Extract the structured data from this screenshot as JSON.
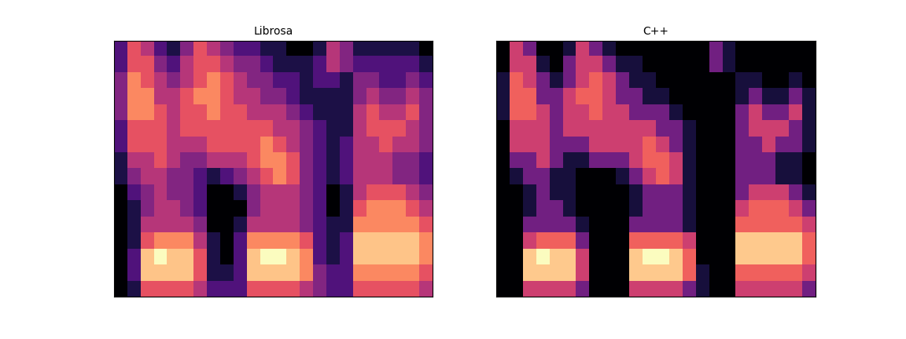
{
  "chart_data": [
    {
      "type": "heatmap",
      "title": "Librosa",
      "tick_labels": false,
      "cells": [
        [
          3,
          6,
          5,
          3,
          2,
          4,
          6,
          5,
          4,
          3,
          3,
          2,
          2,
          1,
          1,
          2,
          5,
          4,
          2,
          2,
          2,
          2,
          2,
          1
        ],
        [
          3,
          6,
          6,
          4,
          3,
          5,
          6,
          6,
          5,
          4,
          4,
          3,
          2,
          2,
          2,
          3,
          5,
          4,
          3,
          3,
          3,
          3,
          3,
          2
        ],
        [
          4,
          7,
          6,
          5,
          4,
          5,
          6,
          7,
          6,
          5,
          4,
          4,
          3,
          3,
          2,
          3,
          3,
          2,
          4,
          4,
          3,
          3,
          4,
          3
        ],
        [
          4,
          7,
          7,
          5,
          5,
          6,
          7,
          7,
          6,
          5,
          5,
          4,
          4,
          3,
          2,
          2,
          2,
          2,
          4,
          5,
          4,
          4,
          5,
          4
        ],
        [
          4,
          7,
          7,
          6,
          5,
          6,
          6,
          7,
          6,
          6,
          5,
          5,
          5,
          4,
          3,
          2,
          2,
          2,
          5,
          6,
          5,
          5,
          6,
          4
        ],
        [
          3,
          6,
          6,
          6,
          5,
          6,
          6,
          6,
          6,
          6,
          6,
          6,
          5,
          5,
          4,
          3,
          2,
          2,
          5,
          6,
          6,
          6,
          5,
          4
        ],
        [
          3,
          6,
          6,
          6,
          5,
          5,
          5,
          6,
          6,
          6,
          6,
          7,
          6,
          5,
          4,
          3,
          2,
          3,
          5,
          5,
          6,
          5,
          5,
          4
        ],
        [
          2,
          5,
          5,
          6,
          5,
          4,
          4,
          5,
          5,
          5,
          6,
          7,
          7,
          6,
          4,
          3,
          2,
          3,
          5,
          5,
          5,
          4,
          4,
          3
        ],
        [
          2,
          4,
          5,
          5,
          4,
          4,
          3,
          2,
          3,
          4,
          5,
          6,
          7,
          6,
          4,
          3,
          2,
          3,
          5,
          5,
          5,
          4,
          4,
          3
        ],
        [
          1,
          3,
          4,
          5,
          4,
          4,
          3,
          1,
          1,
          2,
          4,
          5,
          5,
          5,
          4,
          3,
          1,
          2,
          5,
          6,
          6,
          6,
          5,
          4
        ],
        [
          1,
          2,
          4,
          5,
          5,
          4,
          3,
          1,
          1,
          1,
          4,
          5,
          5,
          5,
          4,
          3,
          1,
          2,
          6,
          7,
          7,
          7,
          6,
          5
        ],
        [
          1,
          2,
          5,
          5,
          5,
          5,
          4,
          1,
          1,
          2,
          5,
          5,
          5,
          5,
          4,
          3,
          2,
          2,
          7,
          7,
          7,
          7,
          7,
          6
        ],
        [
          1,
          2,
          6,
          7,
          7,
          7,
          5,
          2,
          1,
          3,
          7,
          7,
          7,
          7,
          6,
          3,
          2,
          3,
          8,
          8,
          8,
          8,
          8,
          7
        ],
        [
          1,
          3,
          8,
          9,
          8,
          8,
          6,
          2,
          1,
          3,
          8,
          9,
          9,
          8,
          7,
          3,
          2,
          3,
          8,
          8,
          8,
          8,
          8,
          7
        ],
        [
          1,
          3,
          8,
          8,
          8,
          8,
          6,
          2,
          2,
          3,
          8,
          8,
          8,
          8,
          7,
          4,
          3,
          3,
          7,
          7,
          7,
          7,
          7,
          6
        ],
        [
          1,
          2,
          6,
          6,
          6,
          6,
          5,
          3,
          3,
          3,
          6,
          6,
          6,
          6,
          5,
          4,
          3,
          3,
          6,
          6,
          6,
          6,
          6,
          5
        ]
      ]
    },
    {
      "type": "heatmap",
      "title": "C++",
      "tick_labels": false,
      "cells": [
        [
          0,
          5,
          3,
          0,
          0,
          1,
          5,
          3,
          1,
          0,
          0,
          0,
          0,
          0,
          0,
          0,
          3,
          1,
          0,
          0,
          0,
          0,
          0,
          0
        ],
        [
          0,
          5,
          5,
          1,
          0,
          3,
          5,
          5,
          3,
          1,
          1,
          0,
          0,
          0,
          0,
          0,
          3,
          1,
          0,
          0,
          0,
          0,
          0,
          0
        ],
        [
          1,
          6,
          5,
          3,
          1,
          3,
          5,
          6,
          5,
          3,
          1,
          1,
          0,
          0,
          0,
          0,
          0,
          0,
          1,
          1,
          0,
          0,
          1,
          0
        ],
        [
          1,
          6,
          6,
          3,
          3,
          5,
          6,
          6,
          5,
          3,
          3,
          1,
          1,
          0,
          0,
          0,
          0,
          0,
          1,
          3,
          1,
          1,
          3,
          1
        ],
        [
          1,
          6,
          6,
          5,
          3,
          5,
          5,
          6,
          5,
          5,
          3,
          3,
          3,
          1,
          0,
          0,
          0,
          0,
          3,
          5,
          3,
          3,
          5,
          1
        ],
        [
          0,
          5,
          5,
          5,
          3,
          5,
          5,
          5,
          5,
          5,
          5,
          5,
          3,
          3,
          1,
          0,
          0,
          0,
          3,
          5,
          5,
          5,
          3,
          1
        ],
        [
          0,
          5,
          5,
          5,
          3,
          3,
          3,
          5,
          5,
          5,
          5,
          6,
          5,
          3,
          1,
          0,
          0,
          0,
          3,
          3,
          5,
          3,
          3,
          1
        ],
        [
          0,
          3,
          3,
          5,
          3,
          1,
          1,
          3,
          3,
          3,
          5,
          6,
          6,
          5,
          1,
          0,
          0,
          0,
          3,
          3,
          3,
          1,
          1,
          0
        ],
        [
          0,
          1,
          3,
          3,
          1,
          1,
          0,
          0,
          0,
          1,
          3,
          5,
          6,
          5,
          1,
          0,
          0,
          0,
          3,
          3,
          3,
          1,
          1,
          0
        ],
        [
          0,
          0,
          1,
          3,
          1,
          1,
          0,
          0,
          0,
          0,
          1,
          3,
          3,
          3,
          1,
          0,
          0,
          0,
          3,
          5,
          5,
          5,
          3,
          1
        ],
        [
          0,
          0,
          1,
          3,
          3,
          1,
          0,
          0,
          0,
          0,
          1,
          3,
          3,
          3,
          1,
          0,
          0,
          0,
          5,
          6,
          6,
          6,
          5,
          3
        ],
        [
          0,
          0,
          3,
          3,
          3,
          3,
          1,
          0,
          0,
          0,
          3,
          3,
          3,
          3,
          1,
          0,
          0,
          0,
          6,
          6,
          6,
          6,
          6,
          5
        ],
        [
          0,
          0,
          5,
          6,
          6,
          6,
          3,
          0,
          0,
          0,
          6,
          6,
          6,
          6,
          5,
          0,
          0,
          0,
          8,
          8,
          8,
          8,
          8,
          6
        ],
        [
          0,
          0,
          8,
          9,
          8,
          8,
          5,
          0,
          0,
          0,
          8,
          9,
          9,
          8,
          6,
          0,
          0,
          0,
          8,
          8,
          8,
          8,
          8,
          6
        ],
        [
          0,
          0,
          8,
          8,
          8,
          8,
          5,
          0,
          0,
          0,
          8,
          8,
          8,
          8,
          6,
          1,
          0,
          0,
          6,
          6,
          6,
          6,
          6,
          5
        ],
        [
          0,
          0,
          5,
          5,
          5,
          5,
          3,
          0,
          0,
          0,
          5,
          5,
          5,
          5,
          3,
          1,
          0,
          0,
          5,
          5,
          5,
          5,
          5,
          3
        ]
      ]
    }
  ]
}
